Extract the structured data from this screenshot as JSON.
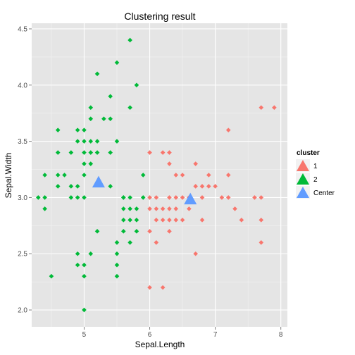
{
  "chart_data": {
    "type": "scatter",
    "title": "Clustering result",
    "xlabel": "Sepal.Length",
    "ylabel": "Sepal.Width",
    "xlim": [
      4.2,
      8.1
    ],
    "ylim": [
      1.85,
      4.55
    ],
    "xticks": [
      5,
      6,
      7,
      8
    ],
    "yticks": [
      2.0,
      2.5,
      3.0,
      3.5,
      4.0,
      4.5
    ],
    "xtick_labels": [
      "5",
      "6",
      "7",
      "8"
    ],
    "ytick_labels": [
      "2.0",
      "2.5",
      "3.0",
      "3.5",
      "4.0",
      "4.5"
    ],
    "background": "#e5e5e5",
    "grid": true,
    "legend": {
      "title": "cluster",
      "position": "right",
      "entries": [
        {
          "label": "1",
          "color": "#f8766d",
          "shape": "triangle"
        },
        {
          "label": "2",
          "color": "#00ba38",
          "shape": "triangle"
        },
        {
          "label": "Center",
          "color": "#619cff",
          "shape": "triangle"
        }
      ]
    },
    "series": [
      {
        "name": "1",
        "color": "#f8766d",
        "marker": "diamond",
        "points": [
          [
            7.7,
            3.8
          ],
          [
            7.9,
            3.8
          ],
          [
            7.2,
            3.6
          ],
          [
            6.0,
            3.4
          ],
          [
            6.2,
            3.4
          ],
          [
            6.3,
            3.4
          ],
          [
            6.3,
            3.3
          ],
          [
            6.7,
            3.3
          ],
          [
            6.4,
            3.2
          ],
          [
            6.5,
            3.2
          ],
          [
            6.9,
            3.2
          ],
          [
            7.2,
            3.2
          ],
          [
            6.7,
            3.1
          ],
          [
            6.8,
            3.1
          ],
          [
            6.9,
            3.1
          ],
          [
            7.0,
            3.1
          ],
          [
            6.0,
            3.0
          ],
          [
            6.1,
            3.0
          ],
          [
            6.3,
            3.0
          ],
          [
            6.4,
            3.0
          ],
          [
            6.5,
            3.0
          ],
          [
            6.6,
            3.0
          ],
          [
            6.8,
            3.0
          ],
          [
            7.1,
            3.0
          ],
          [
            7.2,
            3.0
          ],
          [
            7.6,
            3.0
          ],
          [
            7.7,
            3.0
          ],
          [
            6.0,
            2.9
          ],
          [
            6.1,
            2.9
          ],
          [
            6.2,
            2.9
          ],
          [
            6.3,
            2.9
          ],
          [
            6.4,
            2.9
          ],
          [
            6.6,
            2.9
          ],
          [
            7.3,
            2.9
          ],
          [
            6.1,
            2.8
          ],
          [
            6.2,
            2.8
          ],
          [
            6.3,
            2.8
          ],
          [
            6.4,
            2.8
          ],
          [
            6.5,
            2.8
          ],
          [
            6.8,
            2.8
          ],
          [
            7.4,
            2.8
          ],
          [
            6.0,
            2.7
          ],
          [
            6.3,
            2.7
          ],
          [
            7.7,
            2.8
          ],
          [
            6.1,
            2.6
          ],
          [
            7.7,
            2.6
          ],
          [
            6.7,
            2.5
          ],
          [
            6.0,
            2.2
          ],
          [
            6.2,
            2.2
          ]
        ]
      },
      {
        "name": "2",
        "color": "#00ba38",
        "marker": "diamond",
        "points": [
          [
            5.7,
            4.4
          ],
          [
            5.5,
            4.2
          ],
          [
            5.2,
            4.1
          ],
          [
            5.8,
            4.0
          ],
          [
            5.4,
            3.9
          ],
          [
            5.1,
            3.8
          ],
          [
            5.7,
            3.8
          ],
          [
            5.1,
            3.7
          ],
          [
            5.3,
            3.7
          ],
          [
            5.4,
            3.7
          ],
          [
            4.6,
            3.6
          ],
          [
            4.9,
            3.6
          ],
          [
            5.0,
            3.6
          ],
          [
            4.9,
            3.5
          ],
          [
            5.0,
            3.5
          ],
          [
            5.1,
            3.5
          ],
          [
            5.2,
            3.5
          ],
          [
            5.5,
            3.5
          ],
          [
            4.6,
            3.4
          ],
          [
            4.8,
            3.4
          ],
          [
            5.0,
            3.4
          ],
          [
            5.1,
            3.4
          ],
          [
            5.2,
            3.4
          ],
          [
            5.4,
            3.4
          ],
          [
            5.0,
            3.3
          ],
          [
            5.1,
            3.3
          ],
          [
            4.4,
            3.2
          ],
          [
            4.6,
            3.2
          ],
          [
            4.7,
            3.2
          ],
          [
            5.0,
            3.2
          ],
          [
            5.9,
            3.2
          ],
          [
            4.6,
            3.1
          ],
          [
            4.8,
            3.1
          ],
          [
            4.9,
            3.1
          ],
          [
            5.4,
            3.1
          ],
          [
            5.6,
            3.0
          ],
          [
            4.3,
            3.0
          ],
          [
            4.4,
            3.0
          ],
          [
            4.8,
            3.0
          ],
          [
            4.9,
            3.0
          ],
          [
            5.0,
            3.0
          ],
          [
            5.6,
            3.0
          ],
          [
            5.7,
            3.0
          ],
          [
            5.9,
            3.0
          ],
          [
            4.4,
            2.9
          ],
          [
            5.6,
            2.9
          ],
          [
            5.7,
            2.9
          ],
          [
            5.8,
            2.9
          ],
          [
            5.6,
            2.8
          ],
          [
            5.7,
            2.8
          ],
          [
            5.8,
            2.8
          ],
          [
            5.2,
            2.7
          ],
          [
            5.6,
            2.7
          ],
          [
            5.8,
            2.7
          ],
          [
            5.5,
            2.6
          ],
          [
            5.7,
            2.6
          ],
          [
            5.5,
            2.5
          ],
          [
            4.9,
            2.5
          ],
          [
            5.1,
            2.5
          ],
          [
            4.9,
            2.4
          ],
          [
            5.0,
            2.4
          ],
          [
            5.5,
            2.4
          ],
          [
            5.0,
            2.3
          ],
          [
            5.5,
            2.3
          ],
          [
            4.5,
            2.3
          ],
          [
            5.0,
            2.0
          ]
        ]
      },
      {
        "name": "Center",
        "color": "#619cff",
        "marker": "triangle",
        "points": [
          [
            5.22,
            3.13
          ],
          [
            6.62,
            2.98
          ]
        ]
      }
    ]
  }
}
